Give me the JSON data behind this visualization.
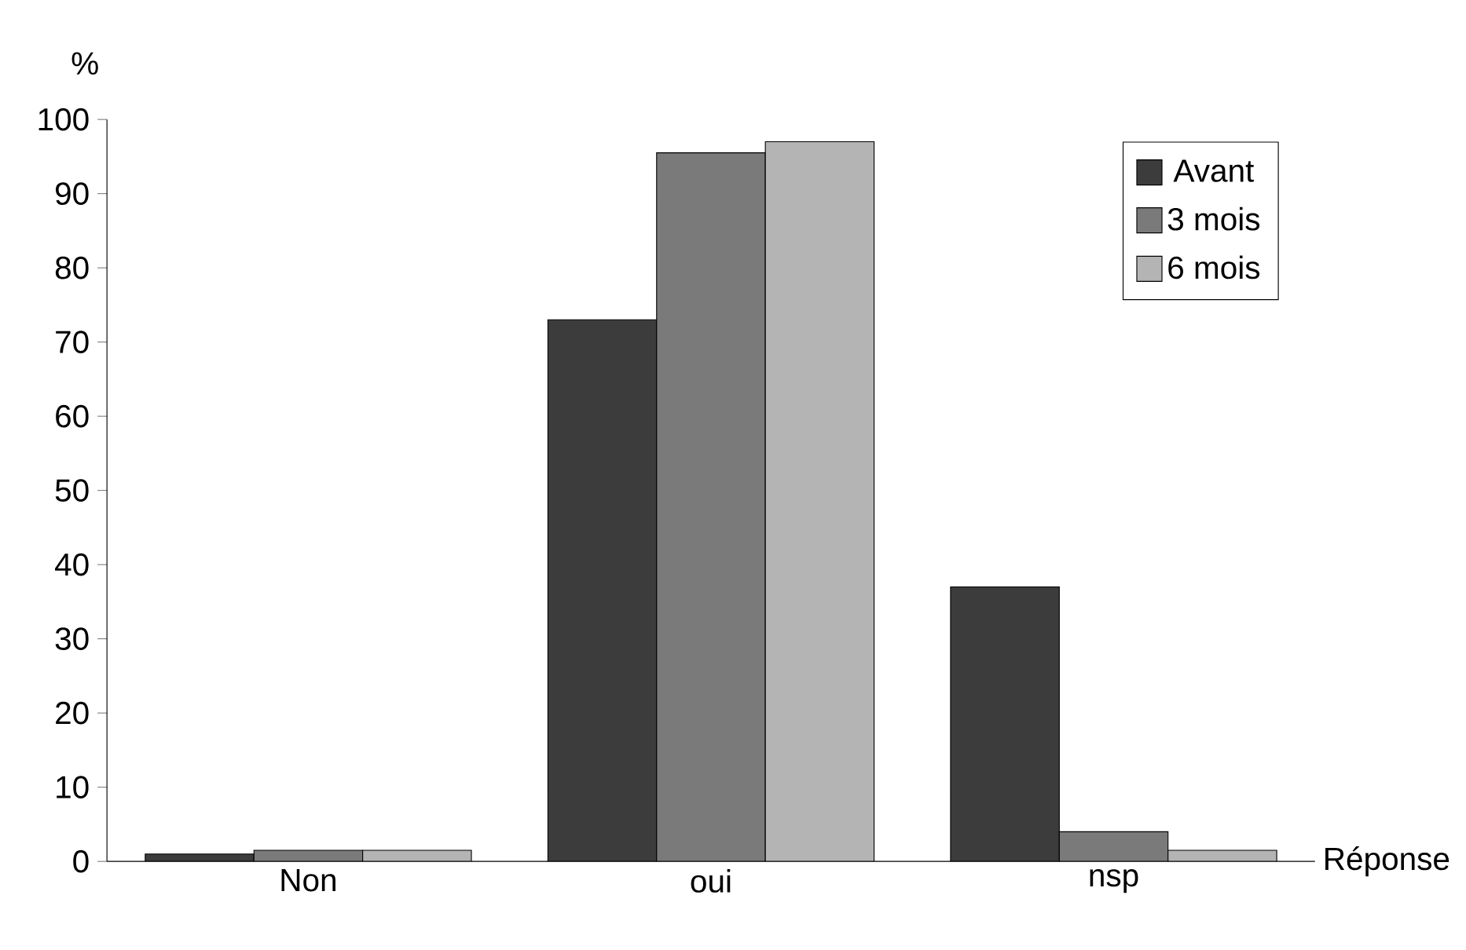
{
  "chart_data": {
    "type": "bar",
    "xlabel": "Réponse",
    "ylabel": "%",
    "categories": [
      "Non",
      "oui",
      "nsp"
    ],
    "series": [
      {
        "name": "Avant",
        "color": "#3c3c3c",
        "values": [
          1,
          73,
          37
        ]
      },
      {
        "name": "3 mois",
        "color": "#7a7a7a",
        "values": [
          1.5,
          95.5,
          4
        ]
      },
      {
        "name": "6 mois",
        "color": "#b4b4b4",
        "values": [
          1.5,
          97,
          1.5
        ]
      }
    ],
    "ylim": [
      0,
      100
    ],
    "yticks": [
      0,
      10,
      20,
      30,
      40,
      50,
      60,
      70,
      80,
      90,
      100
    ],
    "legend": "top right",
    "grid": false
  }
}
